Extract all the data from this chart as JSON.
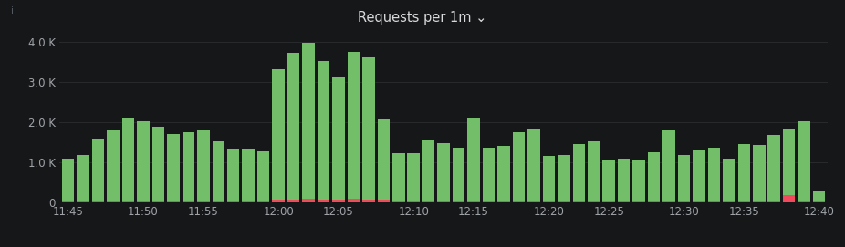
{
  "title": "Requests per 1m ⌄",
  "background_color": "#161719",
  "plot_bg_color": "#161719",
  "grid_color": "#2c2d2f",
  "text_color": "#9fa3a8",
  "title_color": "#d8d9da",
  "bar_color_success": "#73bf69",
  "bar_color_error": "#f2495c",
  "ylim": [
    0,
    4000
  ],
  "yticks": [
    0,
    1000,
    2000,
    3000,
    4000
  ],
  "ytick_labels": [
    "0",
    "1.0 K",
    "2.0 K",
    "3.0 K",
    "4.0 K"
  ],
  "xtick_labels": [
    "11:45",
    "11:50",
    "11:55",
    "12:00",
    "12:05",
    "12:10",
    "12:15",
    "12:20",
    "12:25",
    "12:30",
    "12:35",
    "12:40"
  ],
  "success_values": [
    1050,
    1150,
    1550,
    1750,
    2050,
    1980,
    1850,
    1650,
    1700,
    1750,
    1480,
    1300,
    1280,
    1220,
    3250,
    3650,
    3870,
    3450,
    3050,
    3650,
    3550,
    2000,
    1200,
    1200,
    1500,
    1450,
    1320,
    2050,
    1320,
    1380,
    1720,
    1780,
    1120,
    1150,
    1420,
    1480,
    1020,
    1050,
    1020,
    1220,
    1750,
    1150,
    1250,
    1320,
    1050,
    1420,
    1400,
    1650,
    1650,
    1980,
    230
  ],
  "error_values": [
    40,
    40,
    50,
    50,
    50,
    50,
    50,
    50,
    50,
    50,
    50,
    50,
    50,
    50,
    80,
    80,
    100,
    80,
    80,
    100,
    80,
    80,
    40,
    40,
    40,
    40,
    40,
    40,
    40,
    40,
    40,
    40,
    40,
    40,
    40,
    40,
    40,
    40,
    40,
    40,
    40,
    40,
    40,
    40,
    40,
    40,
    40,
    40,
    180,
    40,
    40
  ],
  "n_bars": 51
}
